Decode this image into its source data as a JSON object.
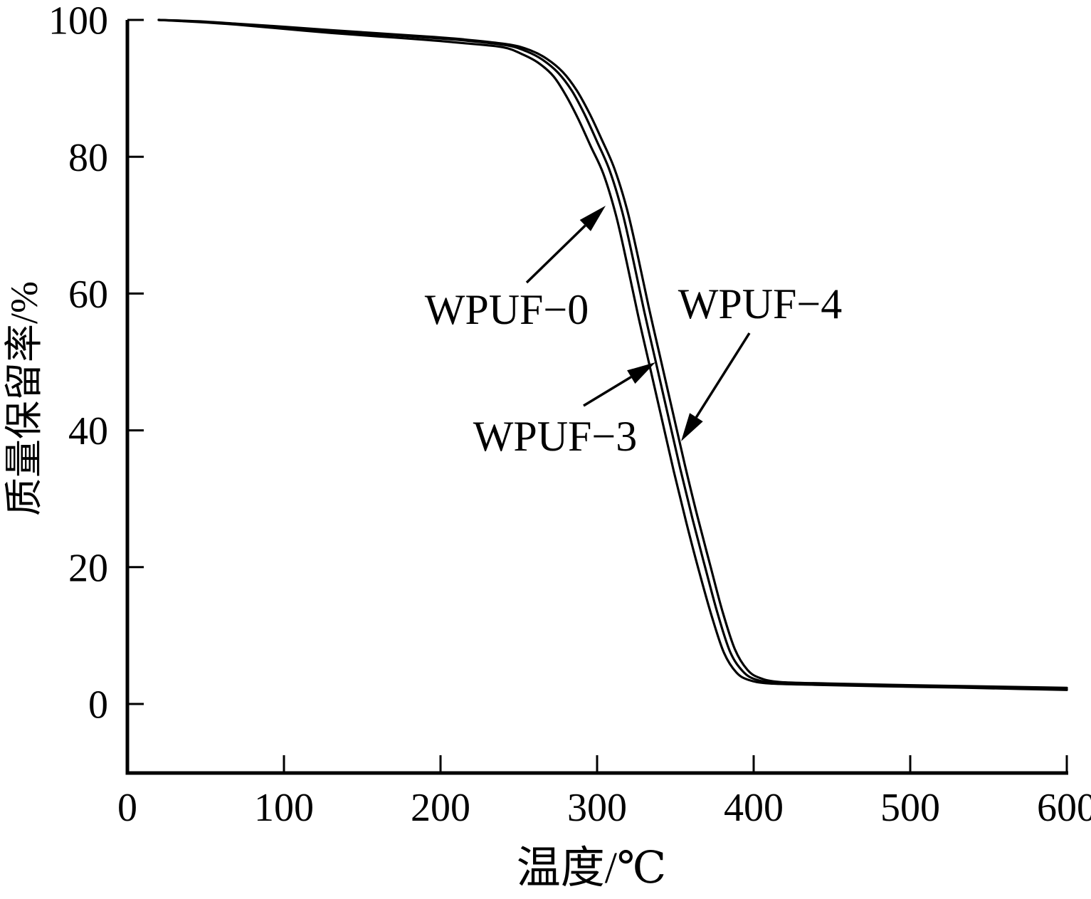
{
  "chart_data": {
    "type": "line",
    "title": "",
    "xlabel": "温度/℃",
    "ylabel": "质量保留率/%",
    "xlim": [
      0,
      600
    ],
    "ylim": [
      -10,
      100
    ],
    "x_ticks": [
      0,
      100,
      200,
      300,
      400,
      500,
      600
    ],
    "y_ticks": [
      0,
      20,
      40,
      60,
      80,
      100
    ],
    "grid": false,
    "legend_position": "none (inline arrow annotations)",
    "line_color": "#000000",
    "background_color": "#ffffff",
    "series": [
      {
        "name": "WPUF-0",
        "points": [
          [
            20,
            100
          ],
          [
            45,
            99.7
          ],
          [
            70,
            99.3
          ],
          [
            100,
            98.7
          ],
          [
            130,
            98.1
          ],
          [
            160,
            97.6
          ],
          [
            190,
            97.1
          ],
          [
            215,
            96.6
          ],
          [
            240,
            96.0
          ],
          [
            252,
            95.0
          ],
          [
            262,
            93.8
          ],
          [
            272,
            91.8
          ],
          [
            280,
            89.0
          ],
          [
            288,
            85.5
          ],
          [
            296,
            81.5
          ],
          [
            304,
            77.5
          ],
          [
            312,
            71.5
          ],
          [
            319,
            64.5
          ],
          [
            326,
            57.0
          ],
          [
            333,
            50.0
          ],
          [
            341,
            42.0
          ],
          [
            349,
            34.0
          ],
          [
            357,
            26.5
          ],
          [
            365,
            19.5
          ],
          [
            373,
            13.0
          ],
          [
            381,
            7.5
          ],
          [
            389,
            4.6
          ],
          [
            397,
            3.5
          ],
          [
            410,
            3.0
          ],
          [
            440,
            2.8
          ],
          [
            480,
            2.6
          ],
          [
            530,
            2.4
          ],
          [
            570,
            2.2
          ],
          [
            600,
            2.05
          ]
        ]
      },
      {
        "name": "WPUF-3",
        "points": [
          [
            20,
            100
          ],
          [
            45,
            99.75
          ],
          [
            70,
            99.4
          ],
          [
            100,
            98.9
          ],
          [
            130,
            98.35
          ],
          [
            160,
            97.9
          ],
          [
            190,
            97.45
          ],
          [
            215,
            97.0
          ],
          [
            242,
            96.3
          ],
          [
            255,
            95.4
          ],
          [
            265,
            94.2
          ],
          [
            275,
            92.3
          ],
          [
            284,
            89.6
          ],
          [
            292,
            86.2
          ],
          [
            300,
            82.2
          ],
          [
            308,
            78.0
          ],
          [
            316,
            72.0
          ],
          [
            323,
            65.0
          ],
          [
            330,
            57.5
          ],
          [
            337,
            50.5
          ],
          [
            345,
            42.5
          ],
          [
            353,
            34.5
          ],
          [
            361,
            27.0
          ],
          [
            369,
            20.0
          ],
          [
            377,
            13.2
          ],
          [
            385,
            7.6
          ],
          [
            393,
            4.8
          ],
          [
            401,
            3.6
          ],
          [
            414,
            3.1
          ],
          [
            444,
            2.9
          ],
          [
            484,
            2.7
          ],
          [
            534,
            2.5
          ],
          [
            574,
            2.3
          ],
          [
            600,
            2.15
          ]
        ]
      },
      {
        "name": "WPUF-4",
        "points": [
          [
            20,
            100
          ],
          [
            45,
            99.8
          ],
          [
            70,
            99.45
          ],
          [
            100,
            99.0
          ],
          [
            130,
            98.5
          ],
          [
            160,
            98.05
          ],
          [
            190,
            97.6
          ],
          [
            215,
            97.15
          ],
          [
            244,
            96.4
          ],
          [
            258,
            95.5
          ],
          [
            268,
            94.3
          ],
          [
            278,
            92.4
          ],
          [
            287,
            89.7
          ],
          [
            295,
            86.4
          ],
          [
            303,
            82.5
          ],
          [
            311,
            78.3
          ],
          [
            319,
            72.4
          ],
          [
            326,
            65.5
          ],
          [
            333,
            58.0
          ],
          [
            340,
            51.0
          ],
          [
            348,
            43.0
          ],
          [
            356,
            35.0
          ],
          [
            364,
            27.5
          ],
          [
            372,
            20.5
          ],
          [
            380,
            13.6
          ],
          [
            388,
            8.0
          ],
          [
            396,
            5.0
          ],
          [
            404,
            3.8
          ],
          [
            417,
            3.2
          ],
          [
            447,
            3.0
          ],
          [
            487,
            2.8
          ],
          [
            537,
            2.6
          ],
          [
            577,
            2.45
          ],
          [
            600,
            2.35
          ]
        ]
      }
    ],
    "annotations": [
      {
        "label": "WPUF−0",
        "points_to": "leftmost curve, ~305°C at ~73% mass"
      },
      {
        "label": "WPUF−3",
        "points_to": "middle curve, ~337°C at ~50% mass"
      },
      {
        "label": "WPUF−4",
        "points_to": "rightmost curve, ~354°C at ~39% mass"
      }
    ]
  }
}
